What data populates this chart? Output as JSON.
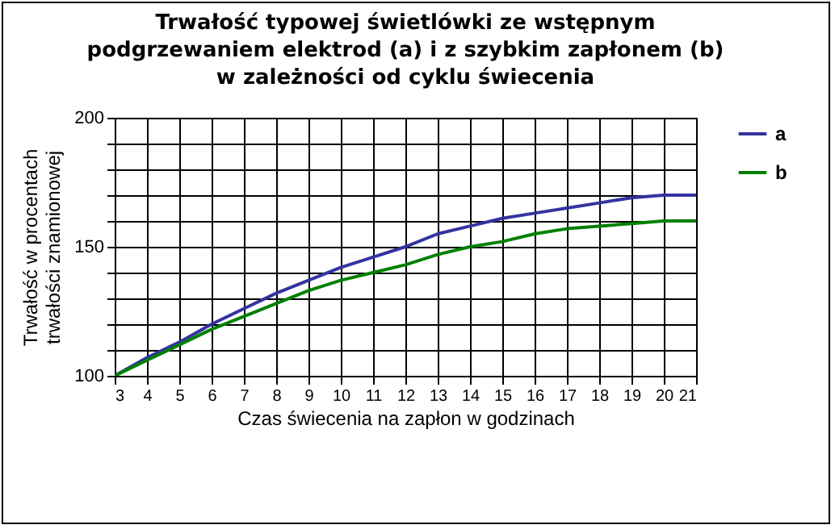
{
  "chart_data": {
    "type": "line",
    "title": "Trwałość typowej świetlówki ze wstępnym\npodgrzewaniem elektrod (a) i z szybkim zapłonem (b)\nw zależności od cyklu świecenia",
    "xlabel": "Czas świecenia na zapłon w godzinach",
    "ylabel": "Trwałość w procentach\ntrwałości znamionowej",
    "x": [
      3,
      4,
      5,
      6,
      7,
      8,
      9,
      10,
      11,
      12,
      13,
      14,
      15,
      16,
      17,
      18,
      19,
      20,
      21
    ],
    "series": [
      {
        "name": "a",
        "color": "#3333a0",
        "values": [
          100,
          107,
          113,
          120,
          126,
          132,
          137,
          142,
          146,
          150,
          155,
          158,
          161,
          163,
          165,
          167,
          169,
          170,
          170
        ]
      },
      {
        "name": "b",
        "color": "#008000",
        "values": [
          100,
          106,
          112,
          118,
          123,
          128,
          133,
          137,
          140,
          143,
          147,
          150,
          152,
          155,
          157,
          158,
          159,
          160,
          160
        ]
      }
    ],
    "xlim": [
      3,
      21
    ],
    "xticks": [
      3,
      4,
      5,
      6,
      7,
      8,
      9,
      10,
      11,
      12,
      13,
      14,
      15,
      16,
      17,
      18,
      19,
      20,
      21
    ],
    "ylim": [
      100,
      200
    ],
    "yticks": [
      100,
      {
        "value": 110,
        "label": null
      },
      {
        "value": 120,
        "label": null
      },
      {
        "value": 130,
        "label": null
      },
      {
        "value": 140,
        "label": null
      },
      150,
      {
        "value": 160,
        "label": null
      },
      {
        "value": 170,
        "label": null
      },
      {
        "value": 180,
        "label": null
      },
      {
        "value": 190,
        "label": null
      },
      200
    ],
    "grid": true,
    "legend": "right",
    "marker": "none",
    "line_style": "solid"
  }
}
